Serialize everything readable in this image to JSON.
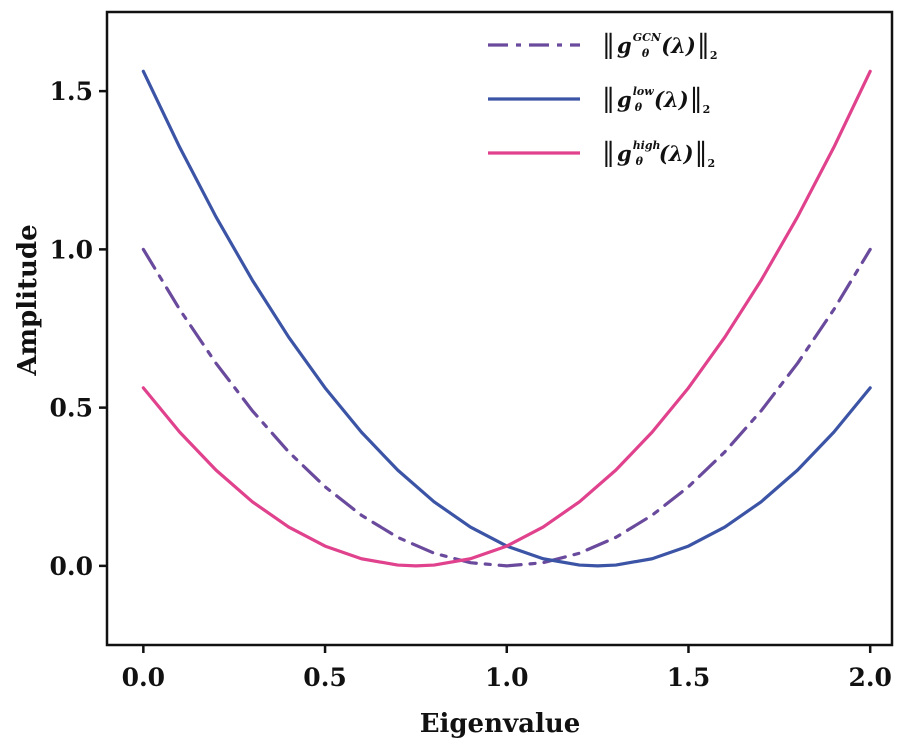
{
  "chart_data": {
    "type": "line",
    "xlabel": "Eigenvalue",
    "ylabel": "Amplitude",
    "xlim": [
      -0.1,
      2.06
    ],
    "ylim": [
      -0.25,
      1.75
    ],
    "xticks": [
      0.0,
      0.5,
      1.0,
      1.5,
      2.0
    ],
    "yticks": [
      0.0,
      0.5,
      1.0,
      1.5
    ],
    "xtick_labels": [
      "0.0",
      "0.5",
      "1.0",
      "1.5",
      "2.0"
    ],
    "ytick_labels": [
      "0.0",
      "0.5",
      "1.0",
      "1.5"
    ],
    "grid": false,
    "legend_position": "top-right",
    "series": [
      {
        "key": "gcn",
        "legend_fn": "g",
        "legend_sub": "θ",
        "legend_sup": "GCN",
        "legend_arg": "(λ)",
        "legend_norm": "2",
        "color": "#6a4a9c",
        "dash": "dashdot",
        "x": [
          0.0,
          0.1,
          0.2,
          0.3,
          0.4,
          0.5,
          0.6,
          0.7,
          0.8,
          0.9,
          1.0,
          1.1,
          1.2,
          1.3,
          1.4,
          1.5,
          1.6,
          1.7,
          1.8,
          1.9,
          2.0
        ],
        "y": [
          1.0,
          0.81,
          0.64,
          0.49,
          0.36,
          0.25,
          0.16,
          0.09,
          0.04,
          0.01,
          0.0,
          0.01,
          0.04,
          0.09,
          0.16,
          0.25,
          0.36,
          0.49,
          0.64,
          0.81,
          1.0
        ]
      },
      {
        "key": "low",
        "legend_fn": "g",
        "legend_sub": "θ",
        "legend_sup": "low",
        "legend_arg": "(λ)",
        "legend_norm": "2",
        "color": "#3c54a5",
        "dash": "solid",
        "x": [
          0.0,
          0.1,
          0.2,
          0.3,
          0.4,
          0.5,
          0.6,
          0.7,
          0.8,
          0.9,
          1.0,
          1.1,
          1.2,
          1.25,
          1.3,
          1.4,
          1.5,
          1.6,
          1.7,
          1.8,
          1.9,
          2.0
        ],
        "y": [
          1.5625,
          1.3225,
          1.1025,
          0.9025,
          0.7225,
          0.5625,
          0.4225,
          0.3025,
          0.2025,
          0.1225,
          0.0625,
          0.0225,
          0.0025,
          0.0,
          0.0025,
          0.0225,
          0.0625,
          0.1225,
          0.2025,
          0.3025,
          0.4225,
          0.5625
        ]
      },
      {
        "key": "high",
        "legend_fn": "g",
        "legend_sub": "θ",
        "legend_sup": "high",
        "legend_arg": "(λ)",
        "legend_norm": "2",
        "color": "#e0428d",
        "dash": "solid",
        "x": [
          0.0,
          0.1,
          0.2,
          0.3,
          0.4,
          0.5,
          0.6,
          0.7,
          0.75,
          0.8,
          0.9,
          1.0,
          1.1,
          1.2,
          1.3,
          1.4,
          1.5,
          1.6,
          1.7,
          1.8,
          1.9,
          2.0
        ],
        "y": [
          0.5625,
          0.4225,
          0.3025,
          0.2025,
          0.1225,
          0.0625,
          0.0225,
          0.0025,
          0.0,
          0.0025,
          0.0225,
          0.0625,
          0.1225,
          0.2025,
          0.3025,
          0.4225,
          0.5625,
          0.7225,
          0.9025,
          1.1025,
          1.3225,
          1.5625
        ]
      }
    ]
  }
}
